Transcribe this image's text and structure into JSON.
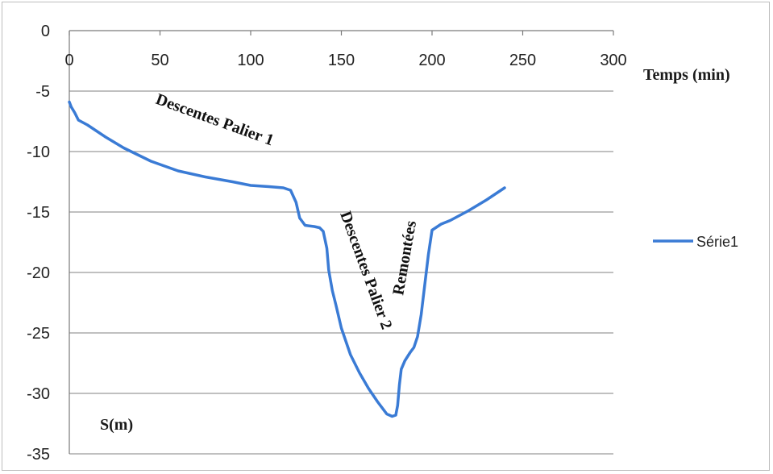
{
  "chart_data": {
    "type": "line",
    "xlabel": "Temps (min)",
    "ylabel": "S(m)",
    "xlim": [
      0,
      300
    ],
    "ylim": [
      -35,
      0
    ],
    "x_ticks": [
      0,
      50,
      100,
      150,
      200,
      250,
      300
    ],
    "y_ticks": [
      0,
      -5,
      -10,
      -15,
      -20,
      -25,
      -30,
      -35
    ],
    "x_tick_labels": [
      "0",
      "50",
      "100",
      "150",
      "200",
      "250",
      "300"
    ],
    "y_tick_labels": [
      "0",
      "-5",
      "-10",
      "-15",
      "-20",
      "-25",
      "-30",
      "-35"
    ],
    "grid": "horizontal",
    "legend_position": "right",
    "series": [
      {
        "name": "Série1",
        "color": "#3a7bd5",
        "x": [
          0,
          1,
          3,
          5,
          10,
          20,
          30,
          45,
          60,
          75,
          90,
          100,
          110,
          118,
          122,
          125,
          127,
          130,
          135,
          138,
          140,
          142,
          143,
          145,
          147,
          150,
          155,
          160,
          165,
          170,
          175,
          178,
          180,
          181,
          182,
          183,
          185,
          188,
          190,
          192,
          194,
          196,
          198,
          200,
          205,
          210,
          220,
          230,
          240
        ],
        "y": [
          -5.9,
          -6.3,
          -6.8,
          -7.4,
          -7.8,
          -8.8,
          -9.7,
          -10.8,
          -11.6,
          -12.1,
          -12.5,
          -12.8,
          -12.9,
          -13.0,
          -13.2,
          -14.2,
          -15.5,
          -16.1,
          -16.2,
          -16.3,
          -16.6,
          -18.0,
          -19.8,
          -21.5,
          -22.7,
          -24.6,
          -26.8,
          -28.3,
          -29.6,
          -30.7,
          -31.7,
          -31.9,
          -31.8,
          -31.0,
          -29.3,
          -28.0,
          -27.3,
          -26.6,
          -26.2,
          -25.3,
          -23.5,
          -21.0,
          -18.5,
          -16.5,
          -16.0,
          -15.7,
          -14.9,
          -14.0,
          -13.0
        ]
      }
    ],
    "annotations": [
      {
        "text": "Descentes Palier 1"
      },
      {
        "text": "Descentes Palier 2"
      },
      {
        "text": "Remontées"
      }
    ]
  }
}
